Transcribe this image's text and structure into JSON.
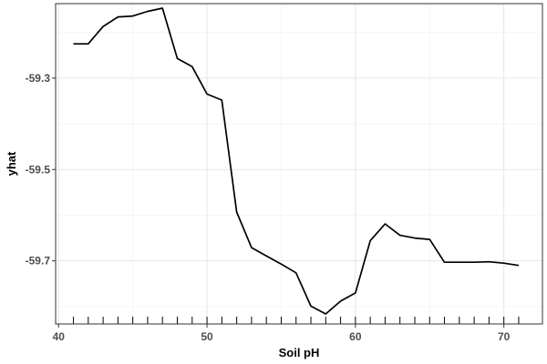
{
  "chart_data": {
    "type": "line",
    "xlabel": "Soil pH",
    "ylabel": "yhat",
    "xlim": [
      39.8,
      72.6
    ],
    "ylim": [
      -59.838,
      -59.137
    ],
    "x_ticks": [
      40,
      50,
      60,
      70
    ],
    "x_tick_labels": [
      "40",
      "50",
      "60",
      "70"
    ],
    "y_ticks": [
      -59.3,
      -59.5,
      -59.7
    ],
    "y_tick_labels": [
      "-59.3",
      "-59.5",
      "-59.7"
    ],
    "grid": true,
    "rug_x": [
      41,
      42,
      43,
      44,
      45,
      46,
      47,
      48,
      49,
      50,
      51,
      52,
      53,
      54,
      55,
      56,
      57,
      58,
      59,
      60,
      61,
      62,
      63,
      64,
      65,
      66,
      67,
      68,
      69,
      70,
      71
    ],
    "series": [
      {
        "color": "#000000",
        "x": [
          41,
          42,
          43,
          44,
          45,
          46,
          47,
          48,
          49,
          50,
          51,
          52,
          53,
          54,
          55,
          56,
          57,
          58,
          59,
          60,
          61,
          62,
          63,
          64,
          65,
          66,
          67,
          68,
          69,
          70,
          71
        ],
        "y": [
          -59.225,
          -59.225,
          -59.187,
          -59.166,
          -59.164,
          -59.154,
          -59.147,
          -59.257,
          -59.275,
          -59.335,
          -59.348,
          -59.593,
          -59.671,
          -59.689,
          -59.707,
          -59.726,
          -59.799,
          -59.816,
          -59.788,
          -59.77,
          -59.656,
          -59.619,
          -59.644,
          -59.65,
          -59.653,
          -59.703,
          -59.703,
          -59.703,
          -59.702,
          -59.705,
          -59.71
        ]
      }
    ]
  }
}
